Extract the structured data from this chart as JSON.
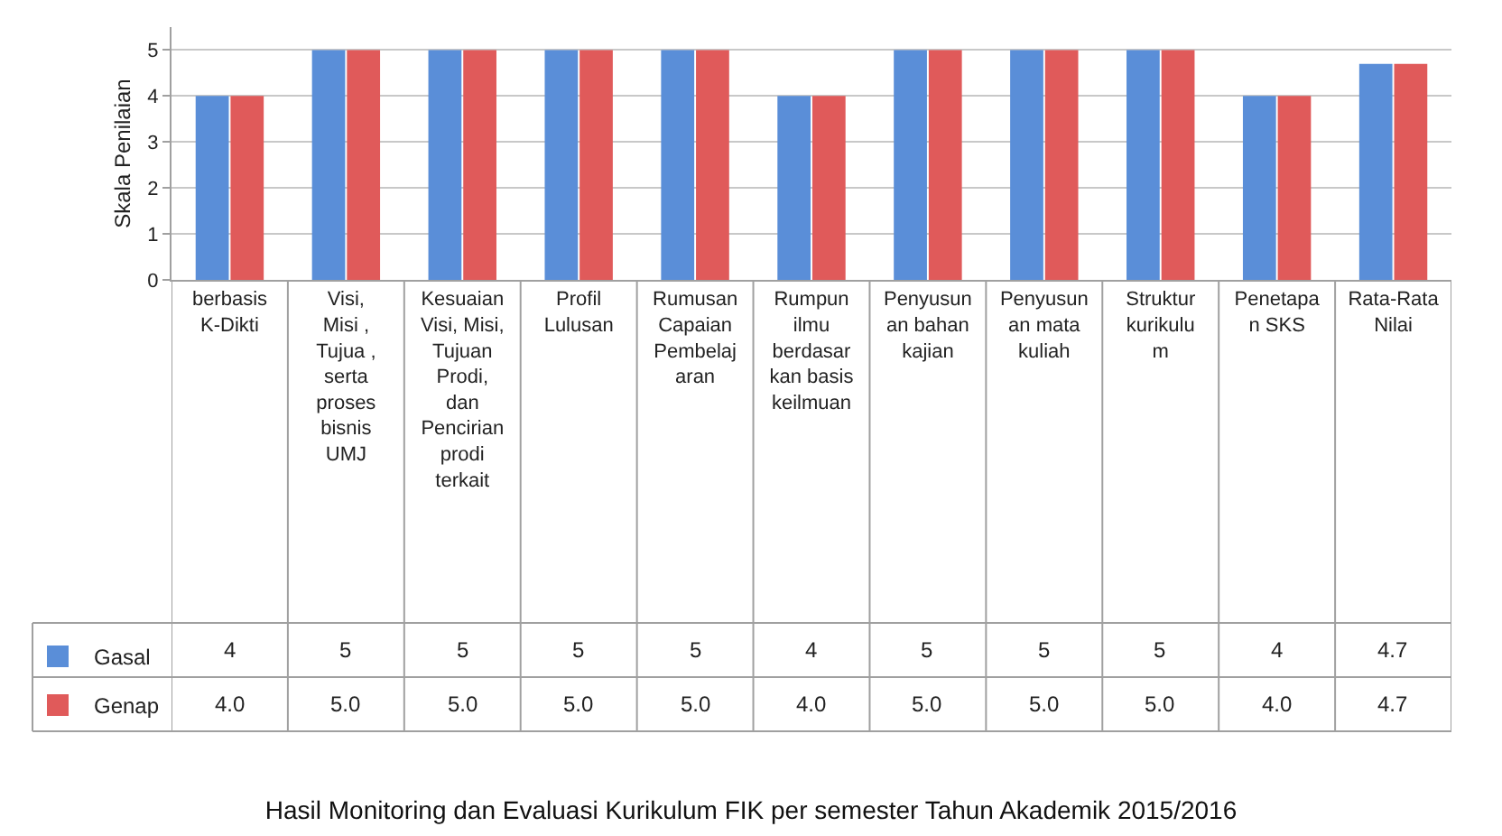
{
  "chart_data": {
    "type": "bar",
    "title": "Hasil Monitoring dan Evaluasi Kurikulum FIK per semester Tahun Akademik 2015/2016",
    "ylabel": "Skala Penilaian",
    "categories": [
      "berbasis\nK-Dikti",
      "Visi,\nMisi ,\nTujua ,\nserta\nproses\nbisnis\nUMJ",
      "Kesuaian\nVisi, Misi,\nTujuan\nProdi,\ndan\nPencirian\nprodi\nterkait",
      "Profil\nLulusan",
      "Rumusan\nCapaian\nPembelaj\naran",
      "Rumpun\nilmu\nberdasar\nkan basis\nkeilmuan",
      "Penyusun\nan bahan\nkajian",
      "Penyusun\nan mata\nkuliah",
      "Struktur\nkurikulu\nm",
      "Penetapa\nn SKS",
      "Rata-Rata\nNilai"
    ],
    "series": [
      {
        "name": "Gasal",
        "color": "#5a8ed8",
        "values": [
          4,
          5,
          5,
          5,
          5,
          4,
          5,
          5,
          5,
          4,
          4.7
        ],
        "value_labels": [
          "4",
          "5",
          "5",
          "5",
          "5",
          "4",
          "5",
          "5",
          "5",
          "4",
          "4.7"
        ]
      },
      {
        "name": "Genap",
        "color": "#e05a5a",
        "values": [
          4,
          5,
          5,
          5,
          5,
          4,
          5,
          5,
          5,
          4,
          4.7
        ],
        "value_labels": [
          "4.0",
          "5.0",
          "5.0",
          "5.0",
          "5.0",
          "4.0",
          "5.0",
          "5.0",
          "5.0",
          "4.0",
          "4.7"
        ]
      }
    ],
    "ylim": [
      0,
      5.5
    ],
    "yticks": [
      0,
      1,
      2,
      3,
      4,
      5
    ],
    "grid": "y",
    "legend": "bottom left"
  }
}
